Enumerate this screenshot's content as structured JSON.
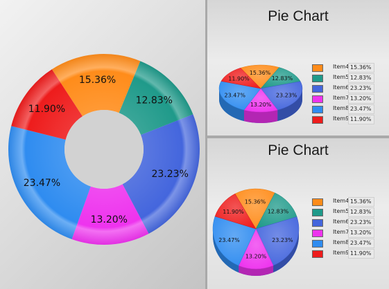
{
  "chart_data": [
    {
      "type": "pie",
      "variant": "donut",
      "title": "",
      "categories": [
        "Item4",
        "Item5",
        "Item6",
        "Item7",
        "Item8",
        "Item9"
      ],
      "values": [
        15.36,
        12.83,
        23.23,
        13.2,
        23.47,
        11.9
      ],
      "labels": [
        "15.36%",
        "12.83%",
        "23.23%",
        "13.20%",
        "23.47%",
        "11.90%"
      ],
      "colors": [
        "#ff8c1a",
        "#1f9a8a",
        "#4466dd",
        "#ee33ee",
        "#2f8cf0",
        "#ee1c1c"
      ],
      "legend": "none"
    },
    {
      "type": "pie",
      "variant": "3d",
      "title": "Pie Chart",
      "categories": [
        "Item4",
        "Item5",
        "Item6",
        "Item7",
        "Item8",
        "Item9"
      ],
      "values": [
        15.36,
        12.83,
        23.23,
        13.2,
        23.47,
        11.9
      ],
      "labels": [
        "15.36%",
        "12.83%",
        "23.23%",
        "13.20%",
        "23.47%",
        "11.90%"
      ],
      "colors": [
        "#ff8c1a",
        "#1f9a8a",
        "#4466dd",
        "#ee33ee",
        "#2f8cf0",
        "#ee1c1c"
      ],
      "legend": "right"
    },
    {
      "type": "pie",
      "variant": "3d",
      "title": "Pie Chart",
      "categories": [
        "Item4",
        "Item5",
        "Item6",
        "Item7",
        "Item8",
        "Item9"
      ],
      "values": [
        15.36,
        12.83,
        23.23,
        13.2,
        23.47,
        11.9
      ],
      "labels": [
        "15.36%",
        "12.83%",
        "23.23%",
        "13.20%",
        "23.47%",
        "11.90%"
      ],
      "colors": [
        "#ff8c1a",
        "#1f9a8a",
        "#4466dd",
        "#ee33ee",
        "#2f8cf0",
        "#ee1c1c"
      ],
      "legend": "right"
    }
  ]
}
